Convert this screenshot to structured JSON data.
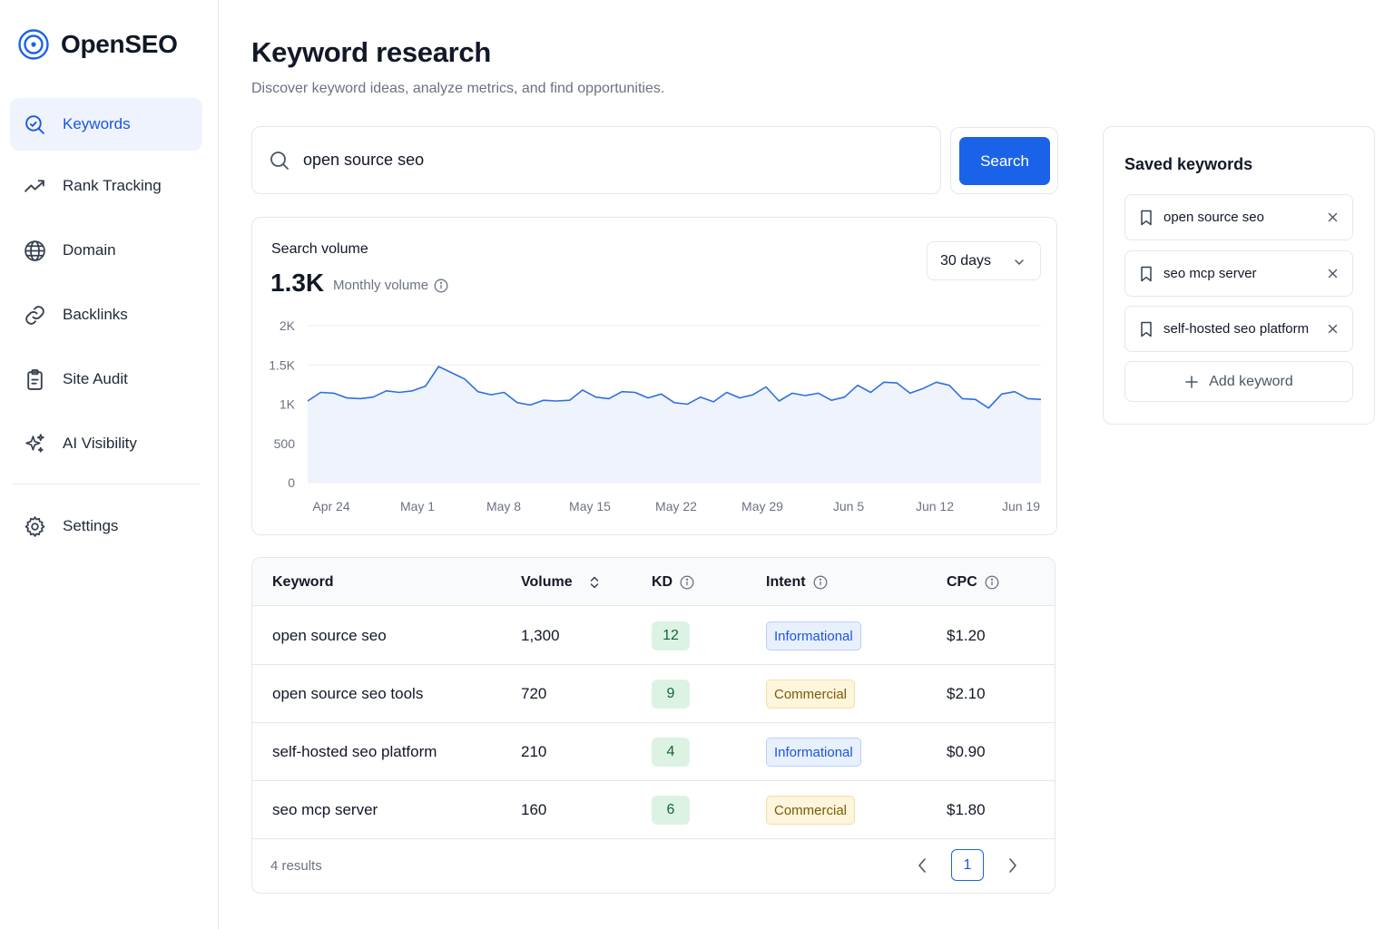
{
  "app": {
    "name": "OpenSEO"
  },
  "sidebar": {
    "items": [
      {
        "label": "Keywords",
        "icon": "keyword-search-icon",
        "active": true
      },
      {
        "label": "Rank Tracking",
        "icon": "trending-up-icon"
      },
      {
        "label": "Domain",
        "icon": "globe-icon"
      },
      {
        "label": "Backlinks",
        "icon": "link-icon"
      },
      {
        "label": "Site Audit",
        "icon": "clipboard-icon"
      },
      {
        "label": "AI Visibility",
        "icon": "sparkles-icon"
      }
    ],
    "settings": {
      "label": "Settings",
      "icon": "gear-icon"
    }
  },
  "header": {
    "title": "Keyword research",
    "subtitle": "Discover keyword ideas, analyze metrics, and find opportunities."
  },
  "search": {
    "value": "open source seo",
    "button_label": "Search"
  },
  "volume": {
    "title": "Search volume",
    "value": "1.3K",
    "value_label": "Monthly volume",
    "range": "30 days"
  },
  "chart_data": {
    "type": "area",
    "title": "Search volume",
    "xlabel": "",
    "ylabel": "",
    "ylim": [
      0,
      2000
    ],
    "yticks": [
      {
        "value": 2000,
        "label": "2K"
      },
      {
        "value": 1500,
        "label": "1.5K"
      },
      {
        "value": 1000,
        "label": "1K"
      },
      {
        "value": 500,
        "label": "500"
      },
      {
        "value": 0,
        "label": "0"
      }
    ],
    "xticks": [
      "Apr 24",
      "May 1",
      "May 8",
      "May 15",
      "May 22",
      "May 29",
      "Jun 5",
      "Jun 12",
      "Jun 19"
    ],
    "grid": true,
    "color": "#2f6fe0",
    "fill": "#eef3fc",
    "values": [
      1040,
      1150,
      1140,
      1080,
      1070,
      1090,
      1170,
      1150,
      1170,
      1230,
      1480,
      1400,
      1320,
      1160,
      1120,
      1150,
      1020,
      990,
      1050,
      1040,
      1050,
      1180,
      1090,
      1070,
      1160,
      1150,
      1080,
      1130,
      1020,
      1000,
      1090,
      1030,
      1150,
      1080,
      1120,
      1220,
      1040,
      1140,
      1110,
      1140,
      1050,
      1090,
      1240,
      1150,
      1280,
      1270,
      1140,
      1200,
      1280,
      1240,
      1070,
      1060,
      950,
      1130,
      1160,
      1070,
      1060
    ]
  },
  "saved": {
    "title": "Saved keywords",
    "items": [
      "open source seo",
      "seo mcp server",
      "self-hosted seo platform"
    ],
    "add_label": "Add keyword"
  },
  "table": {
    "columns": [
      "Keyword",
      "Volume",
      "KD",
      "Intent",
      "CPC"
    ],
    "rows": [
      {
        "keyword": "open source seo",
        "volume": "1,300",
        "kd": "12",
        "intent": "Informational",
        "cpc": "$1.20"
      },
      {
        "keyword": "open source seo tools",
        "volume": "720",
        "kd": "9",
        "intent": "Commercial",
        "cpc": "$2.10"
      },
      {
        "keyword": "self-hosted seo platform",
        "volume": "210",
        "kd": "4",
        "intent": "Informational",
        "cpc": "$0.90"
      },
      {
        "keyword": "seo mcp server",
        "volume": "160",
        "kd": "6",
        "intent": "Commercial",
        "cpc": "$1.80"
      }
    ],
    "results": "4 results",
    "page": "1"
  }
}
